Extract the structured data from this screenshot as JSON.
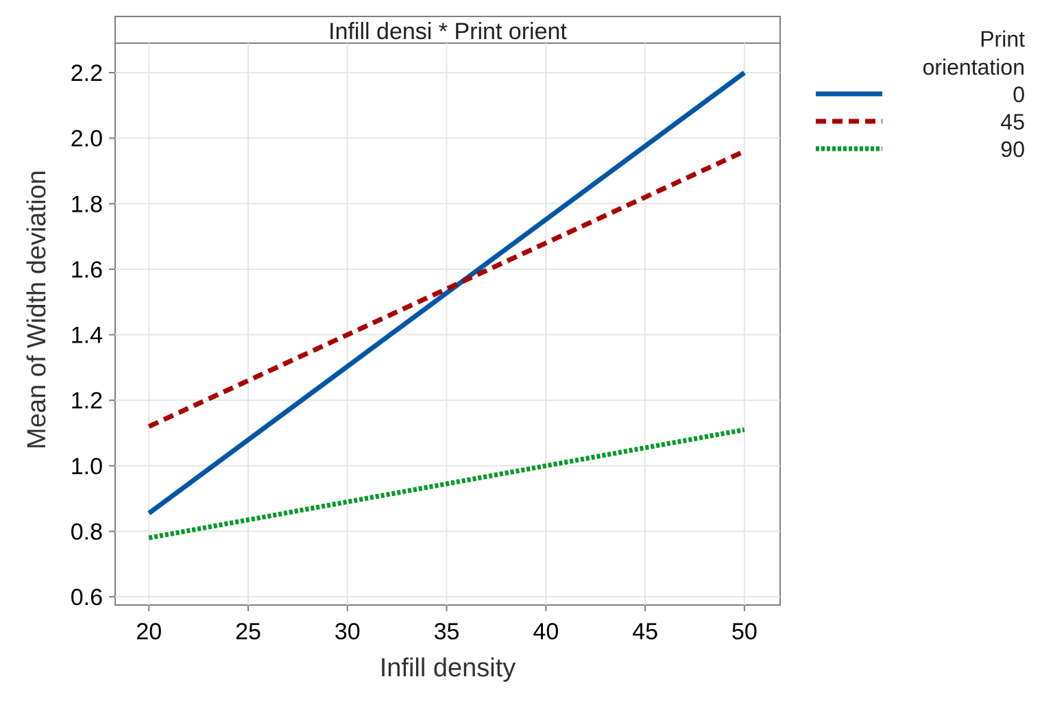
{
  "chart_data": {
    "type": "line",
    "panel_title": "Infill densi * Print orient",
    "xlabel": "Infill density",
    "ylabel": "Mean of Width deviation",
    "x": [
      20,
      50
    ],
    "xlim": [
      18.3,
      51.8
    ],
    "ylim": [
      0.575,
      2.29
    ],
    "xticks": [
      "20",
      "25",
      "30",
      "35",
      "40",
      "45",
      "50"
    ],
    "yticks": [
      "0.6",
      "0.8",
      "1.0",
      "1.2",
      "1.4",
      "1.6",
      "1.8",
      "2.0",
      "2.2"
    ],
    "grid": true,
    "legend": {
      "title_line1": "Print",
      "title_line2": "orientation",
      "position": "right"
    },
    "series": [
      {
        "name": "0",
        "values": [
          0.855,
          2.2
        ],
        "color": "#0057A8",
        "dash": "solid"
      },
      {
        "name": "45",
        "values": [
          1.12,
          1.96
        ],
        "color": "#A80000",
        "dash": "dashed"
      },
      {
        "name": "90",
        "values": [
          0.78,
          1.11
        ],
        "color": "#009A28",
        "dash": "dotted"
      }
    ]
  }
}
